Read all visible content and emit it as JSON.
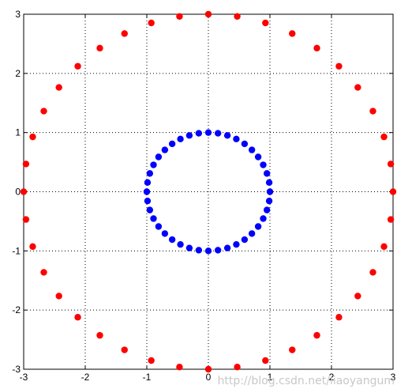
{
  "chart_data": {
    "type": "scatter",
    "title": "",
    "xlabel": "",
    "ylabel": "",
    "xlim": [
      -3,
      3
    ],
    "ylim": [
      -3,
      3
    ],
    "xticks": [
      -3,
      -2,
      -1,
      0,
      1,
      2,
      3
    ],
    "yticks": [
      -3,
      -2,
      -1,
      0,
      1,
      2,
      3
    ],
    "xtick_labels": [
      "-3",
      "-2",
      "-1",
      "0",
      "1",
      "2",
      "3"
    ],
    "ytick_labels": [
      "-3",
      "-2",
      "-1",
      "0",
      "1",
      "2",
      "3"
    ],
    "grid": "dotted",
    "legend": "none",
    "series": [
      {
        "color": "#ff0000",
        "x": [
          3.0,
          2.963,
          2.853,
          2.673,
          2.427,
          2.121,
          1.763,
          1.362,
          0.927,
          0.469,
          0.0,
          -0.469,
          -0.927,
          -1.362,
          -1.763,
          -2.121,
          -2.427,
          -2.673,
          -2.853,
          -2.963,
          -3.0,
          -2.963,
          -2.853,
          -2.673,
          -2.427,
          -2.121,
          -1.763,
          -1.362,
          -0.927,
          -0.469,
          0.0,
          0.469,
          0.927,
          1.362,
          1.763,
          2.121,
          2.427,
          2.673,
          2.853,
          2.963
        ],
        "y": [
          0.0,
          0.469,
          0.927,
          1.362,
          1.763,
          2.121,
          2.427,
          2.673,
          2.853,
          2.963,
          3.0,
          2.963,
          2.853,
          2.673,
          2.427,
          2.121,
          1.763,
          1.362,
          0.927,
          0.469,
          0.0,
          -0.469,
          -0.927,
          -1.362,
          -1.763,
          -2.121,
          -2.427,
          -2.673,
          -2.853,
          -2.963,
          -3.0,
          -2.963,
          -2.853,
          -2.673,
          -2.427,
          -2.121,
          -1.763,
          -1.362,
          -0.927,
          -0.469
        ]
      },
      {
        "color": "#0000ff",
        "x": [
          1.0,
          0.988,
          0.951,
          0.891,
          0.809,
          0.707,
          0.588,
          0.454,
          0.309,
          0.156,
          0.0,
          -0.156,
          -0.309,
          -0.454,
          -0.588,
          -0.707,
          -0.809,
          -0.891,
          -0.951,
          -0.988,
          -1.0,
          -0.988,
          -0.951,
          -0.891,
          -0.809,
          -0.707,
          -0.588,
          -0.454,
          -0.309,
          -0.156,
          0.0,
          0.156,
          0.309,
          0.454,
          0.588,
          0.707,
          0.809,
          0.891,
          0.951,
          0.988
        ],
        "y": [
          0.0,
          0.156,
          0.309,
          0.454,
          0.588,
          0.707,
          0.809,
          0.891,
          0.951,
          0.988,
          1.0,
          0.988,
          0.951,
          0.891,
          0.809,
          0.707,
          0.588,
          0.454,
          0.309,
          0.156,
          0.0,
          -0.156,
          -0.309,
          -0.454,
          -0.588,
          -0.707,
          -0.809,
          -0.891,
          -0.951,
          -0.988,
          -1.0,
          -0.988,
          -0.951,
          -0.891,
          -0.809,
          -0.707,
          -0.588,
          -0.454,
          -0.309,
          -0.156
        ]
      }
    ],
    "watermark": "http://blog.csdn.net/liaoyangum"
  }
}
